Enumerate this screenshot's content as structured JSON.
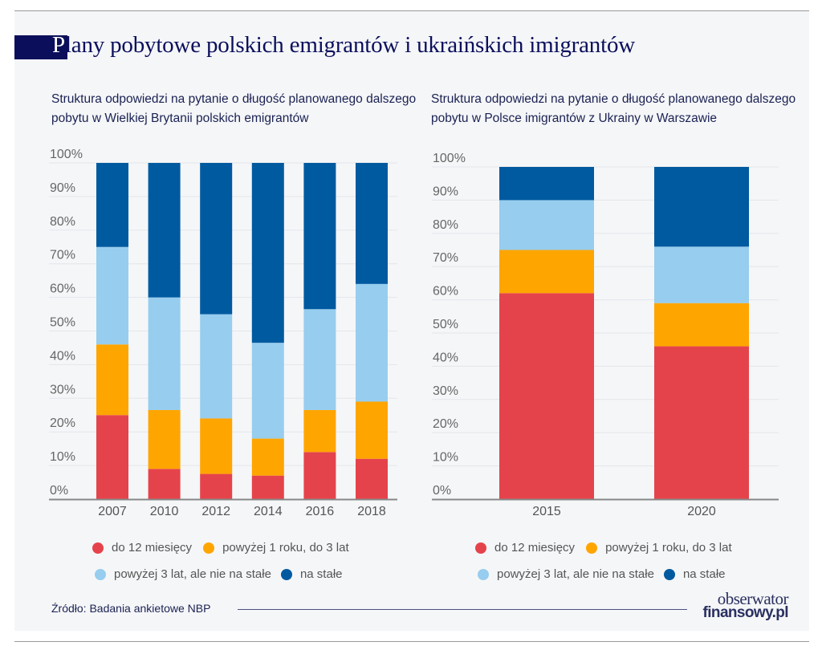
{
  "title": {
    "first_letter": "P",
    "rest": "lany pobytowe polskich emigrantów i ukraińskich imigrantów"
  },
  "colors": {
    "do_12": "#e5434b",
    "1_3": "#ffa500",
    "3_plus": "#97cdee",
    "na_stale": "#005aa0",
    "title_navy": "#0b0f5b",
    "grid": "#e4e6ea",
    "axis": "#888888"
  },
  "legend": [
    {
      "key": "do_12",
      "label": "do 12 miesięcy"
    },
    {
      "key": "1_3",
      "label": "powyżej 1 roku, do 3 lat"
    },
    {
      "key": "3_plus",
      "label": "powyżej 3 lat, ale nie na stałe"
    },
    {
      "key": "na_stale",
      "label": "na stałe"
    }
  ],
  "chart_data": [
    {
      "type": "bar",
      "stacked": true,
      "title": "Struktura odpowiedzi na pytanie o długość planowanego dalszego pobytu w Wielkiej Brytanii polskich emigrantów",
      "xlabel": "",
      "ylabel": "",
      "ylim": [
        0,
        100
      ],
      "yticks": [
        "0%",
        "10%",
        "20%",
        "30%",
        "40%",
        "50%",
        "60%",
        "70%",
        "80%",
        "90%",
        "100%"
      ],
      "grid": true,
      "legend_position": "bottom",
      "categories": [
        "2007",
        "2010",
        "2012",
        "2014",
        "2016",
        "2018"
      ],
      "series": [
        {
          "name": "do 12 miesięcy",
          "key": "do_12",
          "values": [
            25,
            9,
            7.5,
            7,
            14,
            12
          ]
        },
        {
          "name": "powyżej 1 roku, do 3 lat",
          "key": "1_3",
          "values": [
            21,
            17.5,
            16.5,
            11,
            12.5,
            17
          ]
        },
        {
          "name": "powyżej 3 lat, ale nie na stałe",
          "key": "3_plus",
          "values": [
            29,
            33.5,
            31,
            28.5,
            30,
            35
          ]
        },
        {
          "name": "na stałe",
          "key": "na_stale",
          "values": [
            25,
            40,
            45,
            53.5,
            43.5,
            36
          ]
        }
      ]
    },
    {
      "type": "bar",
      "stacked": true,
      "title": "Struktura odpowiedzi na pytanie o długość planowanego dalszego pobytu w Polsce imigrantów z Ukrainy w Warszawie",
      "xlabel": "",
      "ylabel": "",
      "ylim": [
        0,
        100
      ],
      "yticks": [
        "0%",
        "10%",
        "20%",
        "30%",
        "40%",
        "50%",
        "60%",
        "70%",
        "80%",
        "90%",
        "100%"
      ],
      "grid": true,
      "legend_position": "bottom",
      "categories": [
        "2015",
        "2020"
      ],
      "series": [
        {
          "name": "do 12 miesięcy",
          "key": "do_12",
          "values": [
            62,
            46
          ]
        },
        {
          "name": "powyżej 1 roku, do 3 lat",
          "key": "1_3",
          "values": [
            13,
            13
          ]
        },
        {
          "name": "powyżej 3 lat, ale nie na stałe",
          "key": "3_plus",
          "values": [
            15,
            17
          ]
        },
        {
          "name": "na stałe",
          "key": "na_stale",
          "values": [
            10,
            24
          ]
        }
      ]
    }
  ],
  "footer": {
    "source": "Źródło: Badania ankietowe NBP",
    "logo_top": "obserwator",
    "logo_bottom": "finansowy.pl"
  }
}
